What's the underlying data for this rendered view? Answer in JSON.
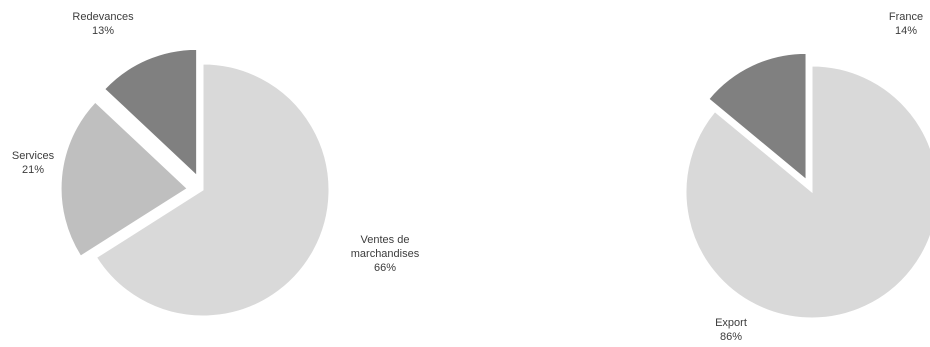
{
  "chart_data": [
    {
      "type": "pie",
      "slices": [
        {
          "label_lines": [
            "Ventes de",
            "marchandises"
          ],
          "value": 66,
          "value_label": "66%",
          "color": "#d9d9d9"
        },
        {
          "label_lines": [
            "Services"
          ],
          "value": 21,
          "value_label": "21%",
          "color": "#bfbfbf"
        },
        {
          "label_lines": [
            "Redevances"
          ],
          "value": 13,
          "value_label": "13%",
          "color": "#808080"
        }
      ]
    },
    {
      "type": "pie",
      "slices": [
        {
          "label_lines": [
            "Export"
          ],
          "value": 86,
          "value_label": "86%",
          "color": "#d9d9d9"
        },
        {
          "label_lines": [
            "France"
          ],
          "value": 14,
          "value_label": "14%",
          "color": "#808080"
        }
      ]
    }
  ]
}
